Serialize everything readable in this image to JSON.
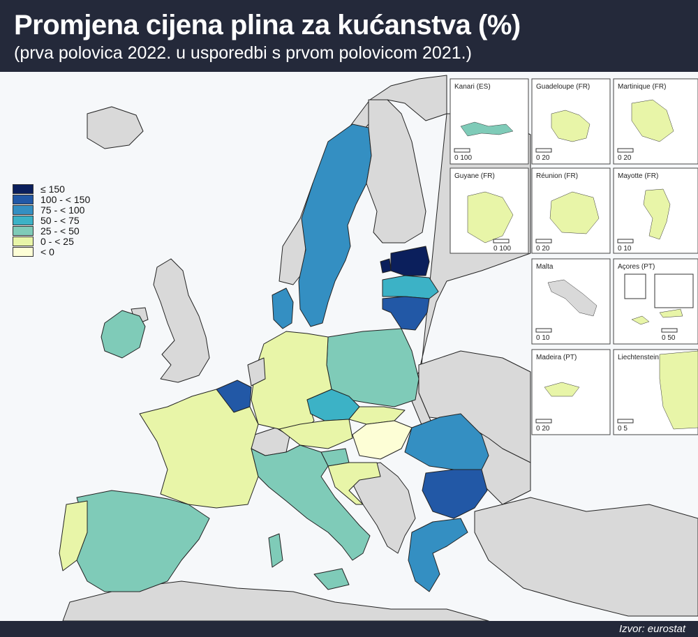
{
  "header": {
    "title": "Promjena cijena plina za kućanstva (%)",
    "subtitle": "(prva polovica 2022. u usporedbi s prvom polovicom 2021.)"
  },
  "footer": {
    "source": "Izvor: eurostat"
  },
  "legend": {
    "classes": [
      {
        "label": "≤ 150",
        "color": "#0b1f5c"
      },
      {
        "label": "100 - < 150",
        "color": "#2258a6"
      },
      {
        "label": "75 - < 100",
        "color": "#348fc2"
      },
      {
        "label": "50 - < 75",
        "color": "#3cb2c6"
      },
      {
        "label": "25 - < 50",
        "color": "#7fcbb8"
      },
      {
        "label": "0 - < 25",
        "color": "#e8f5a8"
      },
      {
        "label": "< 0",
        "color": "#fdfed6"
      }
    ]
  },
  "colors": {
    "non_data_country": "#d9d9d9",
    "sea": "#f6f8fa",
    "border": "#222222"
  },
  "insets": [
    {
      "label": "Kanari (ES)",
      "scale": "0  100"
    },
    {
      "label": "Guadeloupe (FR)",
      "scale": "0   20"
    },
    {
      "label": "Martinique (FR)",
      "scale": "0   20"
    },
    {
      "label": "Guyane (FR)",
      "scale": "0  100"
    },
    {
      "label": "Réunion (FR)",
      "scale": "0   20"
    },
    {
      "label": "Mayotte (FR)",
      "scale": "0   10"
    },
    {
      "label": "Malta",
      "scale": "0   10"
    },
    {
      "label": "Açores (PT)",
      "scale": "0   50"
    },
    {
      "label": "Madeira (PT)",
      "scale": "0   20"
    },
    {
      "label": "Liechtenstein",
      "scale": "0  5"
    }
  ]
}
